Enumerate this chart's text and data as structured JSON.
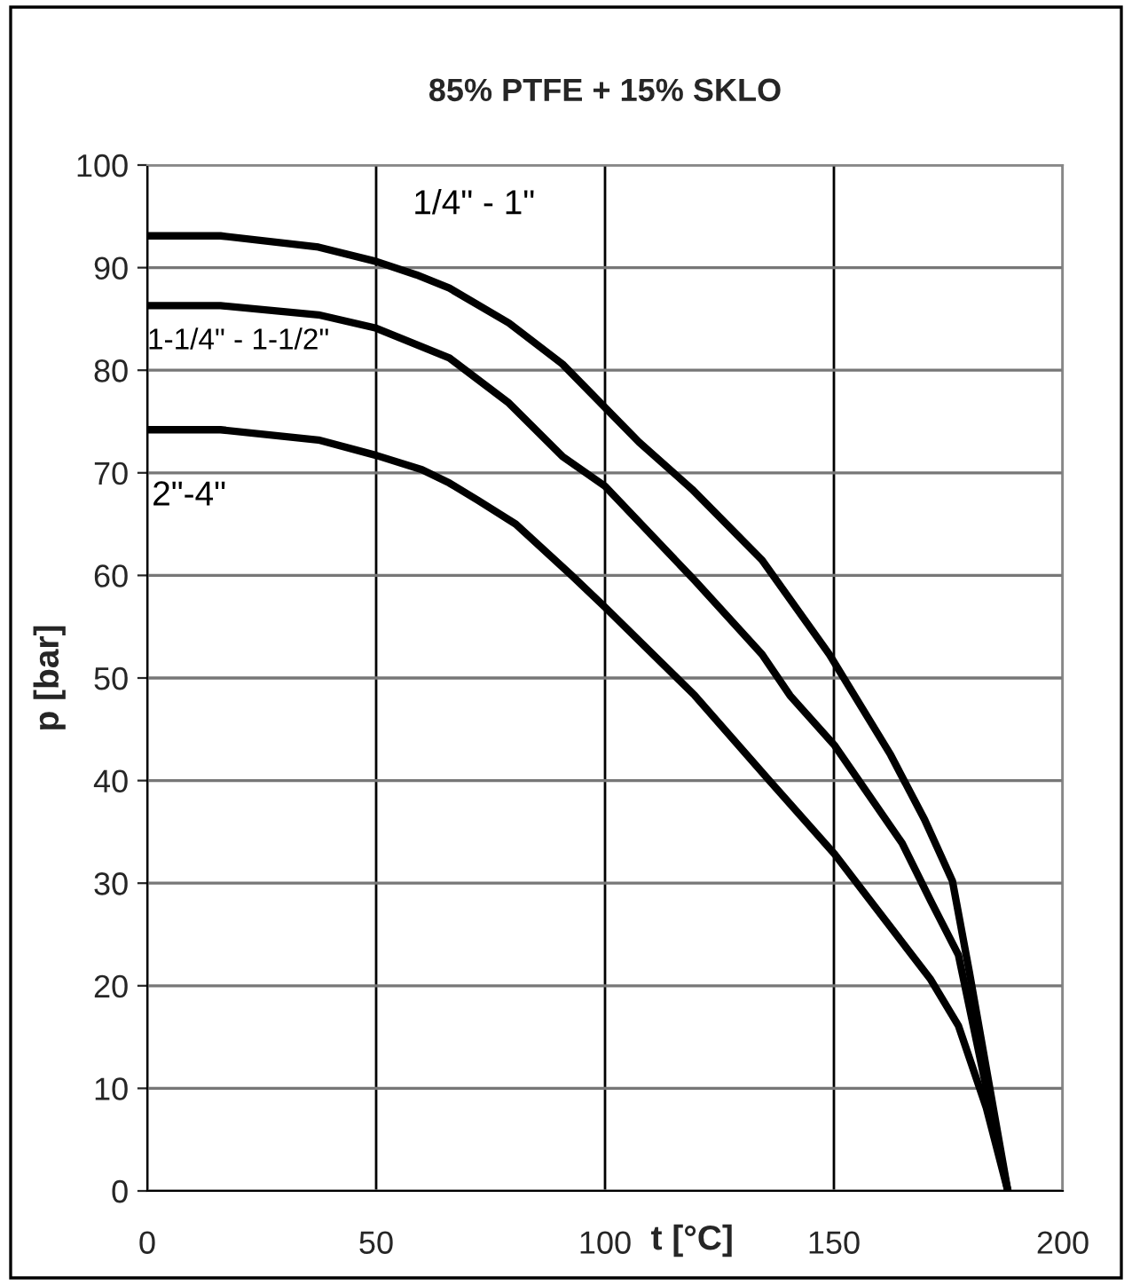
{
  "chart_data": {
    "type": "line",
    "title": "85% PTFE + 15% SKLO",
    "xlabel": "t [°C]",
    "ylabel": "p [bar]",
    "series": [
      {
        "name": "1/4\" - 1\"",
        "color": "#000000",
        "x": [
          0,
          16,
          37.4,
          50,
          58.8,
          66,
          79,
          90.7,
          107.4,
          119,
          134.3,
          149,
          162.4,
          169.8,
          175.9,
          179.6,
          188
        ],
        "values": [
          93.1,
          93.1,
          92.0,
          90.6,
          89.3,
          88,
          84.6,
          80.6,
          73,
          68.4,
          61.5,
          52.3,
          42.5,
          36.2,
          30.2,
          21.3,
          0
        ]
      },
      {
        "name": "1-1/4\" - 1-1/2\"",
        "color": "#000000",
        "x": [
          0,
          16,
          37.4,
          50,
          66,
          79,
          90.7,
          100,
          119.6,
          134.3,
          140.4,
          150.2,
          164.9,
          171,
          177.2,
          188
        ],
        "values": [
          86.3,
          86.3,
          85.4,
          84.1,
          81.2,
          76.8,
          71.6,
          68.7,
          59.5,
          52.3,
          48.3,
          43.4,
          33.9,
          28.4,
          23,
          0
        ]
      },
      {
        "name": "2\"-4\"",
        "color": "#000000",
        "x": [
          0,
          16,
          37.4,
          50,
          60,
          66,
          72.3,
          80.5,
          92.7,
          100,
          119.6,
          135.5,
          150.2,
          171,
          177.2,
          183.3,
          188
        ],
        "values": [
          74.2,
          74.2,
          73.2,
          71.7,
          70.3,
          69,
          67.3,
          65,
          60,
          56.9,
          48.3,
          40.2,
          32.8,
          20.7,
          16.1,
          8.1,
          0
        ]
      }
    ],
    "xlim": [
      0,
      200
    ],
    "xticks": [
      0,
      50,
      100,
      150,
      200
    ],
    "ylim": [
      0,
      100
    ],
    "yticks": [
      0,
      10,
      20,
      30,
      40,
      50,
      60,
      70,
      80,
      90,
      100
    ],
    "grid": true,
    "legend": false,
    "marker": "none",
    "line_style": "solid"
  }
}
